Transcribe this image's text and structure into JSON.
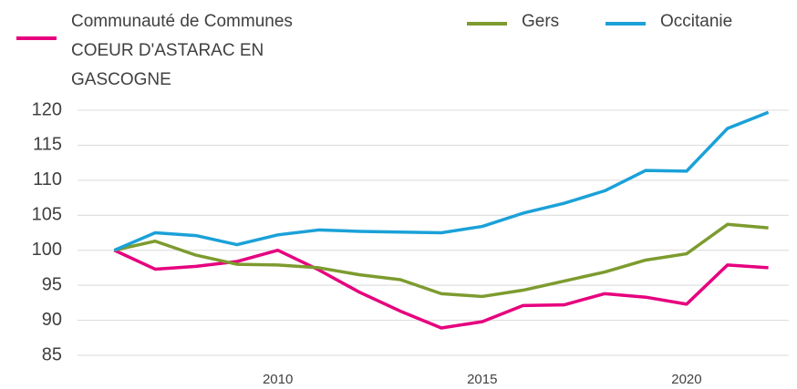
{
  "chart_data": {
    "type": "line",
    "x": [
      2006,
      2007,
      2008,
      2009,
      2010,
      2011,
      2012,
      2013,
      2014,
      2015,
      2016,
      2017,
      2018,
      2019,
      2020,
      2021,
      2022
    ],
    "series": [
      {
        "name": "Communauté de Communes  COEUR D'ASTARAC EN GASCOGNE",
        "color": "#e6007e",
        "values": [
          100,
          97.3,
          97.7,
          98.4,
          100,
          97.2,
          94,
          91.3,
          88.9,
          89.8,
          92.1,
          92.2,
          93.8,
          93.3,
          92.3,
          97.9,
          97.5
        ]
      },
      {
        "name": "Gers",
        "color": "#7d9b2f",
        "values": [
          100,
          101.3,
          99.3,
          98,
          97.9,
          97.5,
          96.5,
          95.8,
          93.8,
          93.4,
          94.3,
          95.6,
          96.9,
          98.6,
          99.5,
          103.7,
          103.2
        ]
      },
      {
        "name": "Occitanie",
        "color": "#1ba1d8",
        "values": [
          100,
          102.5,
          102.1,
          100.8,
          102.2,
          102.9,
          102.7,
          102.6,
          102.5,
          103.4,
          105.3,
          106.7,
          108.5,
          111.4,
          111.3,
          117.4,
          119.7
        ]
      }
    ],
    "xlim": [
      2005.1,
      2022.5
    ],
    "xticks": [
      2010,
      2015,
      2020
    ],
    "ylim": [
      85,
      120
    ],
    "yticks": [
      85,
      90,
      95,
      100,
      105,
      110,
      115,
      120
    ],
    "grid": true,
    "legend": "top"
  }
}
